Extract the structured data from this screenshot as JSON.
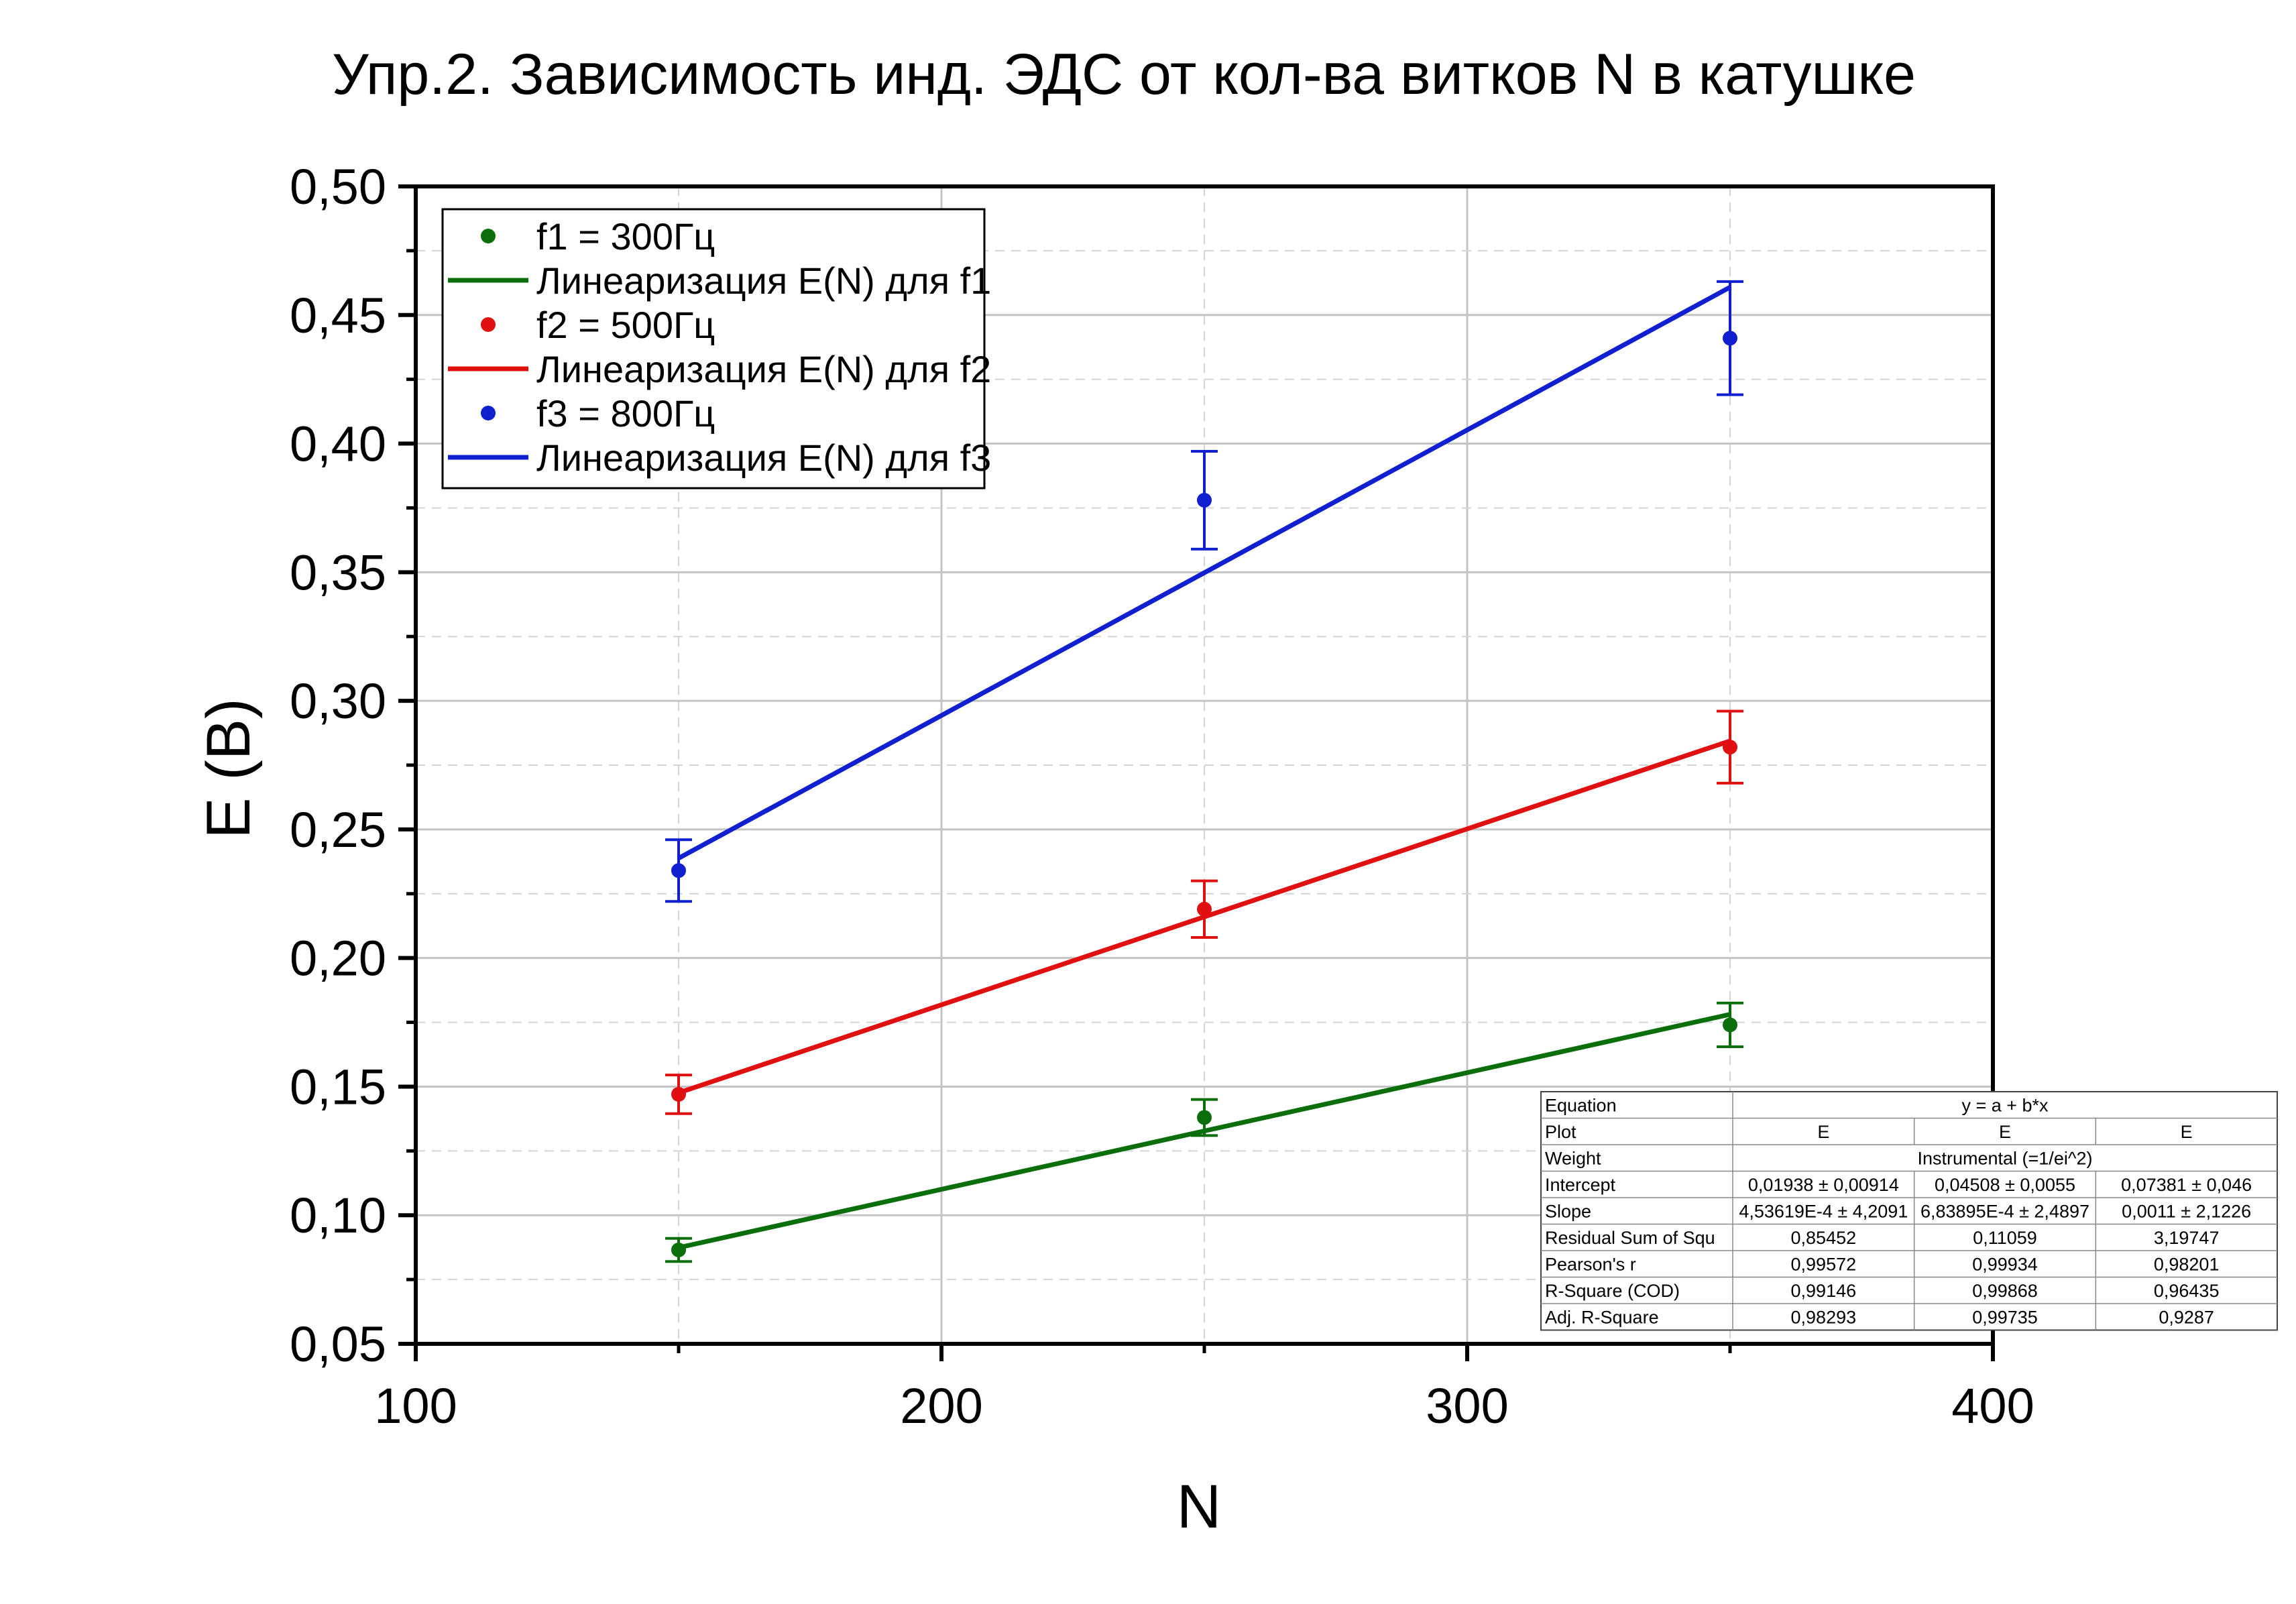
{
  "chart_data": {
    "type": "scatter",
    "title": "Упр.2. Зависимость инд. ЭДС от кол-ва витков N в катушке",
    "xlabel": "N",
    "ylabel": "E (В)",
    "xlim": [
      100,
      400
    ],
    "ylim": [
      0.05,
      0.5
    ],
    "x_ticks": [
      100,
      200,
      300,
      400
    ],
    "x_tick_labels": [
      "100",
      "200",
      "300",
      "400"
    ],
    "y_ticks": [
      0.05,
      0.1,
      0.15,
      0.2,
      0.25,
      0.3,
      0.35,
      0.4,
      0.45,
      0.5
    ],
    "y_tick_labels": [
      "0,05",
      "0,10",
      "0,15",
      "0,20",
      "0,25",
      "0,30",
      "0,35",
      "0,40",
      "0,45",
      "0,50"
    ],
    "grid": true,
    "legend_position": "top-left",
    "series": [
      {
        "name": "f1 = 300Гц",
        "fit_name": "Линеаризация E(N) для f1",
        "color": "#0a6e0a",
        "x": [
          150,
          250,
          350
        ],
        "y": [
          0.0865,
          0.138,
          0.174
        ],
        "err": [
          0.0045,
          0.007,
          0.0085
        ],
        "fit": {
          "x": [
            150,
            350
          ],
          "y": [
            0.0874,
            0.1781
          ]
        }
      },
      {
        "name": "f2 = 500Гц",
        "fit_name": "Линеаризация E(N) для f2",
        "color": "#e01010",
        "x": [
          150,
          250,
          350
        ],
        "y": [
          0.147,
          0.219,
          0.282
        ],
        "err": [
          0.0075,
          0.011,
          0.014
        ],
        "fit": {
          "x": [
            150,
            350
          ],
          "y": [
            0.1476,
            0.2844
          ]
        }
      },
      {
        "name": "f3 = 800Гц",
        "fit_name": "Линеаризация E(N) для f3",
        "color": "#1020d0",
        "x": [
          150,
          250,
          350
        ],
        "y": [
          0.234,
          0.378,
          0.441
        ],
        "err": [
          0.012,
          0.019,
          0.022
        ],
        "fit": {
          "x": [
            150,
            350
          ],
          "y": [
            0.2388,
            0.4608
          ]
        }
      }
    ],
    "stats_table": {
      "rows": [
        [
          "Equation",
          "y = a + b*x"
        ],
        [
          "Plot",
          "E",
          "E",
          "E"
        ],
        [
          "Weight",
          "Instrumental (=1/ei^2)"
        ],
        [
          "Intercept",
          "0,01938 ± 0,00914",
          "0,04508 ± 0,0055",
          "0,07381 ± 0,046"
        ],
        [
          "Slope",
          "4,53619E-4 ± 4,2091",
          "6,83895E-4 ± 2,4897",
          "0,0011 ± 2,1226"
        ],
        [
          "Residual Sum of Squ",
          "0,85452",
          "0,11059",
          "3,19747"
        ],
        [
          "Pearson's r",
          "0,99572",
          "0,99934",
          "0,98201"
        ],
        [
          "R-Square (COD)",
          "0,99146",
          "0,99868",
          "0,96435"
        ],
        [
          "Adj. R-Square",
          "0,98293",
          "0,99735",
          "0,9287"
        ]
      ]
    }
  }
}
